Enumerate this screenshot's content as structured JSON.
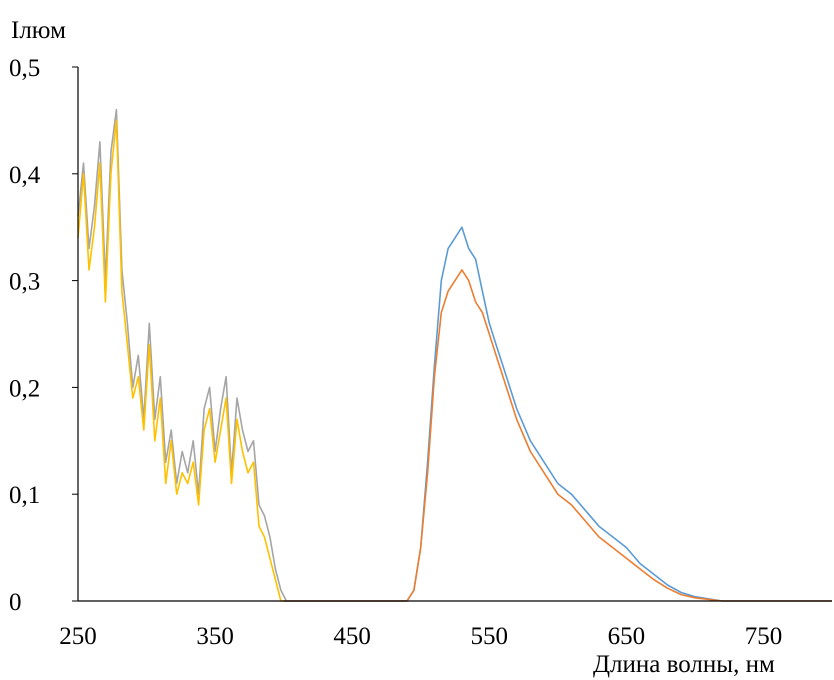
{
  "chart_data": {
    "type": "line",
    "ylabel": "Iлюм",
    "xlabel": "Длина волны, нм",
    "xlim": [
      250,
      800
    ],
    "ylim": [
      0,
      0.5
    ],
    "x_ticks": [
      250,
      350,
      450,
      550,
      650,
      750
    ],
    "x_tick_labels": [
      "250",
      "350",
      "450",
      "550",
      "650",
      "750"
    ],
    "y_ticks": [
      0,
      0.1,
      0.2,
      0.3,
      0.4,
      0.5
    ],
    "y_tick_labels": [
      "0",
      "0,1",
      "0,2",
      "0,3",
      "0,4",
      "0,5"
    ],
    "grid": false,
    "series": [
      {
        "color": "#a5a5a5",
        "x": [
          250,
          254,
          258,
          262,
          266,
          270,
          274,
          278,
          282,
          286,
          290,
          294,
          298,
          302,
          306,
          310,
          314,
          318,
          322,
          326,
          330,
          334,
          338,
          342,
          346,
          350,
          354,
          358,
          362,
          366,
          370,
          374,
          378,
          382,
          386,
          390,
          394,
          398,
          402,
          420,
          440,
          460,
          480,
          490
        ],
        "y": [
          0.36,
          0.41,
          0.33,
          0.37,
          0.43,
          0.3,
          0.42,
          0.46,
          0.31,
          0.26,
          0.2,
          0.23,
          0.17,
          0.26,
          0.17,
          0.21,
          0.13,
          0.16,
          0.11,
          0.14,
          0.12,
          0.15,
          0.1,
          0.18,
          0.2,
          0.14,
          0.18,
          0.21,
          0.12,
          0.19,
          0.16,
          0.14,
          0.15,
          0.09,
          0.08,
          0.06,
          0.03,
          0.01,
          0.0,
          0.0,
          0.0,
          0.0,
          0.0,
          0.0
        ]
      },
      {
        "color": "#ffc000",
        "x": [
          250,
          254,
          258,
          262,
          266,
          270,
          274,
          278,
          282,
          286,
          290,
          294,
          298,
          302,
          306,
          310,
          314,
          318,
          322,
          326,
          330,
          334,
          338,
          342,
          346,
          350,
          354,
          358,
          362,
          366,
          370,
          374,
          378,
          382,
          386,
          390,
          394,
          398,
          402
        ],
        "y": [
          0.34,
          0.4,
          0.31,
          0.35,
          0.41,
          0.28,
          0.4,
          0.45,
          0.29,
          0.24,
          0.19,
          0.21,
          0.16,
          0.24,
          0.15,
          0.19,
          0.11,
          0.15,
          0.1,
          0.12,
          0.11,
          0.13,
          0.09,
          0.16,
          0.18,
          0.13,
          0.16,
          0.19,
          0.11,
          0.17,
          0.14,
          0.12,
          0.13,
          0.07,
          0.06,
          0.04,
          0.02,
          0.0,
          0.0
        ]
      },
      {
        "color": "#5b9bd5",
        "x": [
          400,
          420,
          440,
          460,
          480,
          490,
          495,
          500,
          505,
          510,
          515,
          520,
          525,
          530,
          535,
          540,
          545,
          550,
          555,
          560,
          570,
          580,
          590,
          600,
          610,
          620,
          630,
          640,
          650,
          660,
          670,
          680,
          690,
          700,
          720,
          740,
          760,
          780,
          800
        ],
        "y": [
          0.0,
          0.0,
          0.0,
          0.0,
          0.0,
          0.0,
          0.01,
          0.05,
          0.13,
          0.22,
          0.3,
          0.33,
          0.34,
          0.35,
          0.33,
          0.32,
          0.29,
          0.26,
          0.24,
          0.22,
          0.18,
          0.15,
          0.13,
          0.11,
          0.1,
          0.085,
          0.07,
          0.06,
          0.05,
          0.035,
          0.025,
          0.015,
          0.008,
          0.004,
          0.0,
          0.0,
          0.0,
          0.0,
          0.0
        ]
      },
      {
        "color": "#ed7d31",
        "x": [
          400,
          420,
          440,
          460,
          480,
          490,
          495,
          500,
          505,
          510,
          515,
          520,
          525,
          530,
          535,
          540,
          545,
          550,
          555,
          560,
          570,
          580,
          590,
          600,
          610,
          620,
          630,
          640,
          650,
          660,
          670,
          680,
          690,
          700,
          720,
          740,
          760,
          780,
          800
        ],
        "y": [
          0.0,
          0.0,
          0.0,
          0.0,
          0.0,
          0.0,
          0.01,
          0.05,
          0.12,
          0.21,
          0.27,
          0.29,
          0.3,
          0.31,
          0.3,
          0.28,
          0.27,
          0.25,
          0.23,
          0.21,
          0.17,
          0.14,
          0.12,
          0.1,
          0.09,
          0.075,
          0.06,
          0.05,
          0.04,
          0.03,
          0.02,
          0.012,
          0.006,
          0.003,
          0.0,
          0.0,
          0.0,
          0.0,
          0.0
        ]
      }
    ]
  }
}
